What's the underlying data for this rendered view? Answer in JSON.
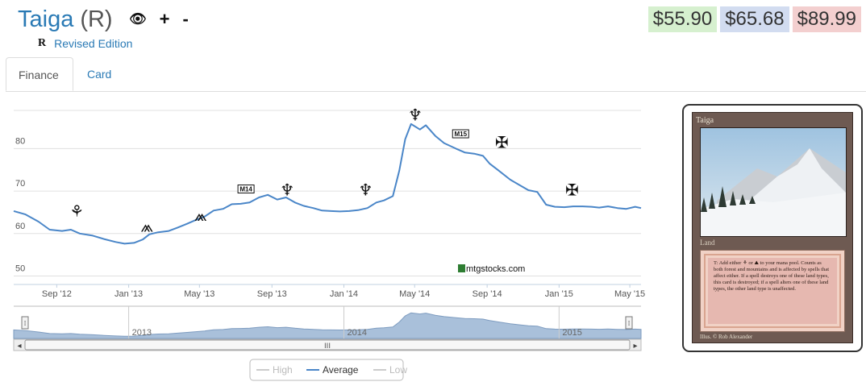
{
  "header": {
    "card_name": "Taiga",
    "rarity": "(R)",
    "eye_icon_glyph": "👁",
    "plus_label": "+",
    "minus_label": "-",
    "set_symbol": "R",
    "set_name": "Revised Edition"
  },
  "prices": {
    "low": "$55.90",
    "average": "$65.68",
    "high": "$89.99"
  },
  "colors": {
    "low_bg": "#d6f0cf",
    "avg_bg": "#d2dcf0",
    "high_bg": "#f3cfcf",
    "line": "#4a86c8",
    "link": "#2a7ab5"
  },
  "tabs": [
    {
      "label": "Finance",
      "active": true
    },
    {
      "label": "Card",
      "active": false
    }
  ],
  "chart_data": {
    "type": "line",
    "y_ticks": [
      "50",
      "60",
      "70",
      "80"
    ],
    "ylim": [
      48,
      89
    ],
    "x_ticks": [
      "Sep '12",
      "Jan '13",
      "May '13",
      "Sep '13",
      "Jan '14",
      "May '14",
      "Sep '14",
      "Jan '15",
      "May '15"
    ],
    "x_tick_dates": [
      "2012-09-01",
      "2013-01-01",
      "2013-05-01",
      "2013-09-01",
      "2014-01-01",
      "2014-05-01",
      "2014-09-01",
      "2015-01-01",
      "2015-05-01"
    ],
    "xlim": [
      "2012-06-20",
      "2015-05-20"
    ],
    "grid": true,
    "watermark": "mtgstocks.com",
    "series": [
      {
        "name": "Average",
        "color": "#4a86c8",
        "points": [
          [
            "2012-06-20",
            65.3
          ],
          [
            "2012-07-10",
            64.5
          ],
          [
            "2012-08-01",
            62.8
          ],
          [
            "2012-08-20",
            60.9
          ],
          [
            "2012-09-10",
            60.6
          ],
          [
            "2012-09-25",
            60.9
          ],
          [
            "2012-10-10",
            60.0
          ],
          [
            "2012-11-01",
            59.5
          ],
          [
            "2012-11-20",
            58.7
          ],
          [
            "2012-12-10",
            58.0
          ],
          [
            "2012-12-25",
            57.6
          ],
          [
            "2013-01-10",
            57.8
          ],
          [
            "2013-01-25",
            58.6
          ],
          [
            "2013-02-05",
            59.8
          ],
          [
            "2013-02-20",
            60.3
          ],
          [
            "2013-03-10",
            60.6
          ],
          [
            "2013-03-25",
            61.4
          ],
          [
            "2013-04-10",
            62.3
          ],
          [
            "2013-04-25",
            63.2
          ],
          [
            "2013-05-10",
            64.0
          ],
          [
            "2013-05-25",
            65.4
          ],
          [
            "2013-06-10",
            65.8
          ],
          [
            "2013-06-25",
            66.9
          ],
          [
            "2013-07-10",
            67.0
          ],
          [
            "2013-07-25",
            67.3
          ],
          [
            "2013-08-10",
            68.5
          ],
          [
            "2013-08-25",
            69.1
          ],
          [
            "2013-09-10",
            68.0
          ],
          [
            "2013-09-25",
            68.5
          ],
          [
            "2013-10-10",
            67.3
          ],
          [
            "2013-10-25",
            66.5
          ],
          [
            "2013-11-10",
            66.0
          ],
          [
            "2013-11-25",
            65.4
          ],
          [
            "2013-12-10",
            65.3
          ],
          [
            "2013-12-25",
            65.2
          ],
          [
            "2014-01-10",
            65.3
          ],
          [
            "2014-01-25",
            65.5
          ],
          [
            "2014-02-10",
            66.0
          ],
          [
            "2014-02-25",
            67.3
          ],
          [
            "2014-03-10",
            67.8
          ],
          [
            "2014-03-25",
            68.8
          ],
          [
            "2014-04-05",
            74.8
          ],
          [
            "2014-04-15",
            82.2
          ],
          [
            "2014-04-25",
            85.8
          ],
          [
            "2014-05-10",
            84.5
          ],
          [
            "2014-05-20",
            85.5
          ],
          [
            "2014-06-05",
            83.0
          ],
          [
            "2014-06-20",
            81.3
          ],
          [
            "2014-07-10",
            80.0
          ],
          [
            "2014-07-25",
            79.1
          ],
          [
            "2014-08-10",
            78.8
          ],
          [
            "2014-08-25",
            78.3
          ],
          [
            "2014-09-05",
            76.5
          ],
          [
            "2014-09-20",
            74.9
          ],
          [
            "2014-10-10",
            72.7
          ],
          [
            "2014-10-25",
            71.5
          ],
          [
            "2014-11-10",
            70.2
          ],
          [
            "2014-11-25",
            69.8
          ],
          [
            "2014-12-10",
            66.8
          ],
          [
            "2014-12-25",
            66.3
          ],
          [
            "2015-01-10",
            66.2
          ],
          [
            "2015-01-25",
            66.4
          ],
          [
            "2015-02-10",
            66.4
          ],
          [
            "2015-02-25",
            66.3
          ],
          [
            "2015-03-10",
            66.1
          ],
          [
            "2015-03-25",
            66.4
          ],
          [
            "2015-04-10",
            66.0
          ],
          [
            "2015-04-25",
            65.8
          ],
          [
            "2015-05-10",
            66.3
          ],
          [
            "2015-05-20",
            66.0
          ]
        ]
      }
    ],
    "set_markers": [
      {
        "name": "return-to-ravnica",
        "date": "2012-10-05",
        "value": 65.3,
        "glyph": "⚘"
      },
      {
        "name": "gatecrash",
        "date": "2013-02-01",
        "value": 61.8,
        "glyph": "⩕"
      },
      {
        "name": "dragons-maze",
        "date": "2013-05-03",
        "value": 64.3,
        "glyph": "⩕"
      },
      {
        "name": "m14",
        "date": "2013-07-19",
        "value": 70.3,
        "glyph": "M14"
      },
      {
        "name": "theros",
        "date": "2013-09-27",
        "value": 70.3,
        "glyph": "♆"
      },
      {
        "name": "born-of-the-gods",
        "date": "2014-02-07",
        "value": 70.3,
        "glyph": "♆"
      },
      {
        "name": "journey-into-nyx",
        "date": "2014-05-02",
        "value": 88.0,
        "glyph": "♆"
      },
      {
        "name": "m15",
        "date": "2014-07-18",
        "value": 83.3,
        "glyph": "M15"
      },
      {
        "name": "khans-of-tarkir",
        "date": "2014-09-26",
        "value": 81.5,
        "glyph": "✠"
      },
      {
        "name": "fate-reforged",
        "date": "2015-01-23",
        "value": 70.3,
        "glyph": "✠"
      }
    ],
    "navigator": {
      "labels": [
        "2013",
        "2014",
        "2015"
      ],
      "handle_glyph": "⁞",
      "scroll_grip": "III",
      "scroll_left_arrow": "◂",
      "scroll_right_arrow": "▸"
    },
    "legend": {
      "items": [
        {
          "label": "High",
          "visible": false,
          "color": "#c8c8c8"
        },
        {
          "label": "Average",
          "visible": true,
          "color": "#4a86c8"
        },
        {
          "label": "Low",
          "visible": false,
          "color": "#c8c8c8"
        }
      ],
      "placement": "bottom-center"
    }
  },
  "card_image": {
    "name": "Taiga",
    "type_line": "Land",
    "rules_text": "T: Add either ⚘ or ⛰ to your mana pool. Counts as both forest and mountains and is affected by spells that affect either. If a spell destroys one of these land types, this card is destroyed; if a spell alters one of these land types, the other land type is unaffected.",
    "illus": "Illus. © Rob Alexander"
  }
}
